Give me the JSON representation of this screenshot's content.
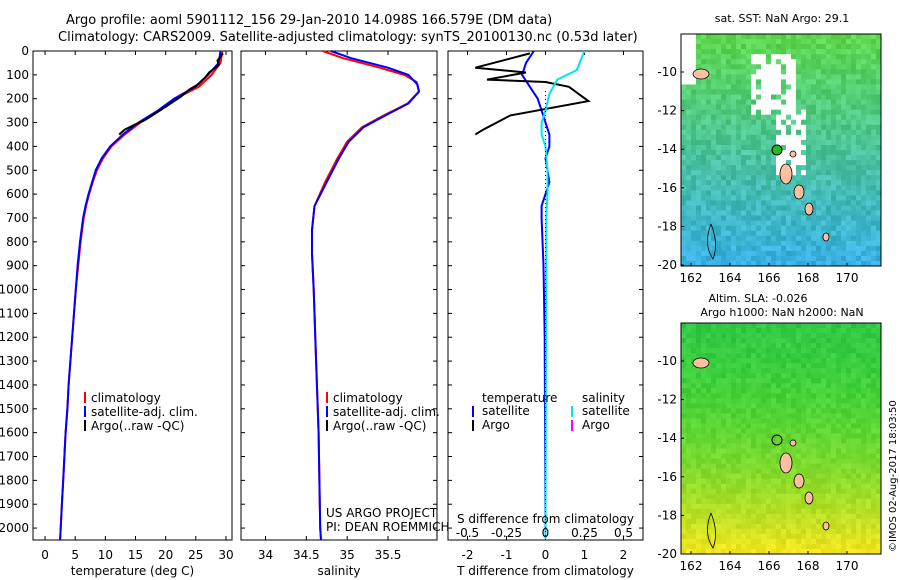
{
  "header": {
    "line1": "Argo profile: aoml 5901112_156 29-Jan-2010 14.098S 166.579E (DM data)",
    "line2": "Climatology: CARS2009. Satellite-adjusted climatology: synTS_20100130.nc (0.53d later)"
  },
  "colors": {
    "climatology": "#ff0000",
    "satellite": "#0000ff",
    "argo": "#000000",
    "sat_salinity": "#00e5ee",
    "argo_salinity": "#ff00ff"
  },
  "chart_data": [
    {
      "type": "line",
      "id": "temperature",
      "xlabel": "temperature (deg C)",
      "ylabel": "",
      "xlim": [
        -2,
        31
      ],
      "ylim": [
        2050,
        0
      ],
      "xticks": [
        0,
        5,
        10,
        15,
        20,
        25,
        30
      ],
      "yticks": [
        0,
        100,
        200,
        300,
        400,
        500,
        600,
        700,
        800,
        900,
        1000,
        1100,
        1200,
        1300,
        1400,
        1500,
        1600,
        1700,
        1800,
        1900,
        2000
      ],
      "series": [
        {
          "name": "climatology",
          "color": "#ff0000",
          "points": [
            [
              29.4,
              0
            ],
            [
              29.1,
              50
            ],
            [
              27.6,
              100
            ],
            [
              25.5,
              150
            ],
            [
              21.6,
              200
            ],
            [
              18.9,
              250
            ],
            [
              15.8,
              300
            ],
            [
              13.2,
              350
            ],
            [
              11.0,
              400
            ],
            [
              9.6,
              450
            ],
            [
              8.6,
              500
            ],
            [
              7.9,
              550
            ],
            [
              7.3,
              600
            ],
            [
              6.8,
              650
            ],
            [
              6.4,
              700
            ],
            [
              5.9,
              800
            ],
            [
              5.5,
              900
            ],
            [
              5.1,
              1000
            ],
            [
              4.8,
              1100
            ],
            [
              4.5,
              1200
            ],
            [
              4.2,
              1300
            ],
            [
              3.9,
              1400
            ],
            [
              3.7,
              1500
            ],
            [
              3.4,
              1600
            ],
            [
              3.2,
              1700
            ],
            [
              3.0,
              1800
            ],
            [
              2.8,
              1900
            ],
            [
              2.6,
              2000
            ],
            [
              2.5,
              2050
            ]
          ]
        },
        {
          "name": "satellite-adj. clim.",
          "color": "#0000ff",
          "points": [
            [
              29.1,
              0
            ],
            [
              28.8,
              50
            ],
            [
              27.0,
              100
            ],
            [
              24.9,
              150
            ],
            [
              21.4,
              200
            ],
            [
              18.7,
              250
            ],
            [
              15.5,
              300
            ],
            [
              12.9,
              350
            ],
            [
              10.8,
              400
            ],
            [
              9.4,
              450
            ],
            [
              8.4,
              500
            ],
            [
              7.8,
              550
            ],
            [
              7.2,
              600
            ],
            [
              6.7,
              650
            ],
            [
              6.3,
              700
            ],
            [
              5.8,
              800
            ],
            [
              5.4,
              900
            ],
            [
              5.1,
              1000
            ],
            [
              4.8,
              1100
            ],
            [
              4.5,
              1200
            ],
            [
              4.2,
              1300
            ],
            [
              3.9,
              1400
            ],
            [
              3.7,
              1500
            ],
            [
              3.4,
              1600
            ],
            [
              3.2,
              1700
            ],
            [
              3.0,
              1800
            ],
            [
              2.8,
              1900
            ],
            [
              2.6,
              2000
            ],
            [
              2.5,
              2050
            ]
          ]
        },
        {
          "name": "Argo(..raw -QC)",
          "color": "#000000",
          "points": [
            [
              29.5,
              10
            ],
            [
              28.6,
              40
            ],
            [
              28.8,
              60
            ],
            [
              27.2,
              90
            ],
            [
              26.6,
              110
            ],
            [
              25.4,
              140
            ],
            [
              24.0,
              160
            ],
            [
              22.6,
              190
            ],
            [
              20.2,
              230
            ],
            [
              18.4,
              260
            ],
            [
              16.5,
              290
            ],
            [
              14.8,
              310
            ],
            [
              13.2,
              330
            ],
            [
              12.3,
              350
            ]
          ]
        }
      ],
      "legend": [
        "climatology",
        "satellite-adj. clim.",
        "Argo(..raw -QC)"
      ]
    },
    {
      "type": "line",
      "id": "salinity",
      "xlabel": "salinity",
      "xlim": [
        33.7,
        36.1
      ],
      "ylim": [
        2050,
        0
      ],
      "xticks": [
        34,
        34.5,
        35,
        35.5
      ],
      "xtick_labels": [
        "34",
        "34.5",
        "35",
        "35.5"
      ],
      "series": [
        {
          "name": "climatology",
          "color": "#ff0000",
          "points": [
            [
              34.7,
              0
            ],
            [
              34.95,
              30
            ],
            [
              35.4,
              70
            ],
            [
              35.7,
              100
            ],
            [
              35.85,
              130
            ],
            [
              35.88,
              170
            ],
            [
              35.74,
              220
            ],
            [
              35.45,
              270
            ],
            [
              35.18,
              320
            ],
            [
              35.0,
              380
            ],
            [
              34.88,
              450
            ],
            [
              34.73,
              550
            ],
            [
              34.6,
              650
            ],
            [
              34.57,
              750
            ],
            [
              34.57,
              850
            ],
            [
              34.59,
              1000
            ],
            [
              34.62,
              1300
            ],
            [
              34.65,
              1600
            ],
            [
              34.67,
              2000
            ],
            [
              34.68,
              2050
            ]
          ]
        },
        {
          "name": "satellite-adj. clim.",
          "color": "#0000ff",
          "points": [
            [
              34.8,
              0
            ],
            [
              35.05,
              30
            ],
            [
              35.5,
              70
            ],
            [
              35.75,
              100
            ],
            [
              35.86,
              140
            ],
            [
              35.88,
              170
            ],
            [
              35.75,
              220
            ],
            [
              35.47,
              270
            ],
            [
              35.2,
              320
            ],
            [
              35.02,
              380
            ],
            [
              34.9,
              450
            ],
            [
              34.75,
              550
            ],
            [
              34.6,
              650
            ],
            [
              34.57,
              750
            ],
            [
              34.57,
              850
            ],
            [
              34.59,
              1000
            ],
            [
              34.62,
              1300
            ],
            [
              34.65,
              1600
            ],
            [
              34.67,
              2000
            ],
            [
              34.68,
              2050
            ]
          ]
        }
      ],
      "legend": [
        "climatology",
        "satellite-adj. clim.",
        "Argo(..raw -QC)"
      ],
      "annotation": [
        "US ARGO PROJECT",
        "PI: DEAN ROEMMICH"
      ]
    },
    {
      "type": "line",
      "id": "difference",
      "xlabel": "T difference from climatology",
      "xlabel_top": "S difference from climatology",
      "xlim": [
        -2.5,
        2.5
      ],
      "ylim": [
        2050,
        0
      ],
      "xticks": [
        -2,
        -1,
        0,
        1,
        2
      ],
      "sticks": [
        -0.5,
        -0.25,
        0,
        0.25,
        0.5
      ],
      "stick_labels": [
        "-0.5",
        "-0.25",
        "0",
        "0.25",
        "0.5"
      ],
      "series": [
        {
          "name": "satellite",
          "color": "#0000ff",
          "points": [
            [
              -0.3,
              0
            ],
            [
              -0.5,
              50
            ],
            [
              -0.6,
              100
            ],
            [
              -0.4,
              150
            ],
            [
              -0.2,
              200
            ],
            [
              0,
              300
            ],
            [
              0.1,
              350
            ],
            [
              0.1,
              400
            ],
            [
              0,
              450
            ],
            [
              0.05,
              500
            ],
            [
              0.1,
              550
            ],
            [
              0,
              600
            ],
            [
              -0.1,
              650
            ],
            [
              -0.1,
              700
            ],
            [
              -0.05,
              900
            ],
            [
              -0.02,
              1200
            ],
            [
              0,
              2050
            ]
          ]
        },
        {
          "name": "Argo",
          "color": "#000000",
          "points": [
            [
              -0.4,
              10
            ],
            [
              -1.8,
              70
            ],
            [
              -0.5,
              90
            ],
            [
              -1.5,
              120
            ],
            [
              0,
              130
            ],
            [
              0.6,
              150
            ],
            [
              1.1,
              210
            ],
            [
              -0.9,
              270
            ],
            [
              -1.6,
              330
            ],
            [
              -1.8,
              350
            ]
          ]
        },
        {
          "name": "salinity satellite",
          "color": "#00e5ee",
          "points": [
            [
              1.0,
              0
            ],
            [
              0.8,
              80
            ],
            [
              0.3,
              120
            ],
            [
              0.1,
              180
            ],
            [
              0.0,
              250
            ],
            [
              -0.1,
              300
            ],
            [
              -0.1,
              350
            ],
            [
              0,
              400
            ],
            [
              0.05,
              500
            ],
            [
              0.05,
              600
            ],
            [
              0.02,
              700
            ],
            [
              0,
              2050
            ]
          ]
        }
      ],
      "legend_temperature": {
        "header": "temperature",
        "items": [
          "satellite",
          "Argo"
        ]
      },
      "legend_salinity": {
        "header": "salinity",
        "items": [
          "satellite",
          "Argo"
        ]
      }
    }
  ],
  "maps": {
    "sst": {
      "title": "sat. SST: NaN Argo: 29.1",
      "xticks": [
        "162",
        "164",
        "166",
        "168",
        "170"
      ],
      "yticks": [
        "-10",
        "-12",
        "-14",
        "-16",
        "-18",
        "-20"
      ]
    },
    "sla": {
      "title1": "Altim. SLA: -0.026",
      "title2": "Argo h1000: NaN h2000: NaN",
      "xticks": [
        "162",
        "164",
        "166",
        "168",
        "170"
      ],
      "yticks": [
        "-10",
        "-12",
        "-14",
        "-16",
        "-18",
        "-20"
      ]
    }
  },
  "footer": {
    "credit": "©IMOS 02-Aug-2017 18:03:50"
  }
}
